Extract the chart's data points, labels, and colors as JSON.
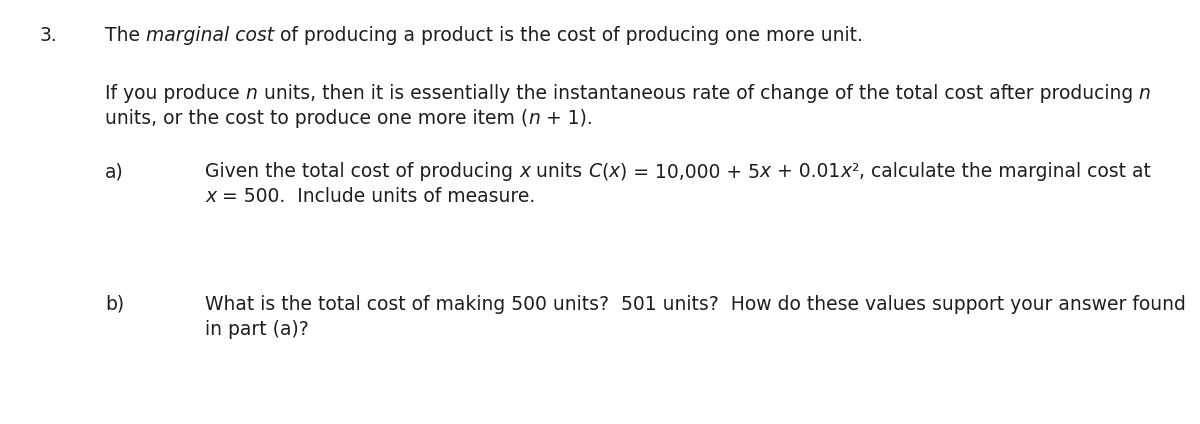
{
  "background_color": "#ffffff",
  "figsize": [
    12.0,
    4.24
  ],
  "dpi": 100,
  "font_size": 13.5,
  "text_color": "#1e1e1e",
  "font_family": "DejaVu Sans"
}
